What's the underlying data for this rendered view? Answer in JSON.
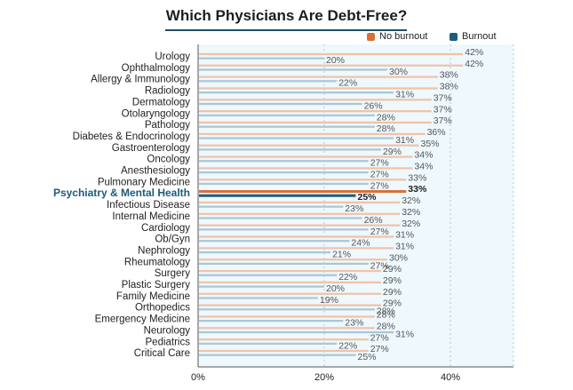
{
  "chart_data": {
    "type": "bar",
    "orientation": "horizontal",
    "title": "Which Physicians Are Debt-Free?",
    "xlabel": "",
    "ylabel": "",
    "xlim": [
      0,
      50
    ],
    "xticks": [
      "0%",
      "20%",
      "40%"
    ],
    "legend_position": "top-right",
    "grid": true,
    "highlight_category": "Psychiatry & Mental Health",
    "categories": [
      "Urology",
      "Ophthalmology",
      "Allergy & Immunology",
      "Radiology",
      "Dermatology",
      "Otolaryngology",
      "Pathology",
      "Diabetes & Endocrinology",
      "Gastroenterology",
      "Oncology",
      "Anesthesiology",
      "Pulmonary Medicine",
      "Psychiatry & Mental Health",
      "Infectious Disease",
      "Internal Medicine",
      "Cardiology",
      "Ob/Gyn",
      "Nephrology",
      "Rheumatology",
      "Surgery",
      "Plastic Surgery",
      "Family Medicine",
      "Orthopedics",
      "Emergency Medicine",
      "Neurology",
      "Pediatrics",
      "Critical Care"
    ],
    "series": [
      {
        "name": "No burnout",
        "color": "#d9703a",
        "values": [
          42,
          42,
          38,
          38,
          37,
          37,
          37,
          36,
          35,
          34,
          34,
          33,
          33,
          32,
          32,
          32,
          31,
          31,
          30,
          29,
          29,
          29,
          29,
          28,
          28,
          27,
          27
        ]
      },
      {
        "name": "Burnout",
        "color": "#1b5c80",
        "values": [
          20,
          30,
          22,
          31,
          26,
          28,
          28,
          31,
          29,
          27,
          27,
          27,
          25,
          23,
          26,
          27,
          24,
          21,
          27,
          22,
          20,
          19,
          28,
          23,
          31,
          22,
          25
        ]
      }
    ]
  }
}
